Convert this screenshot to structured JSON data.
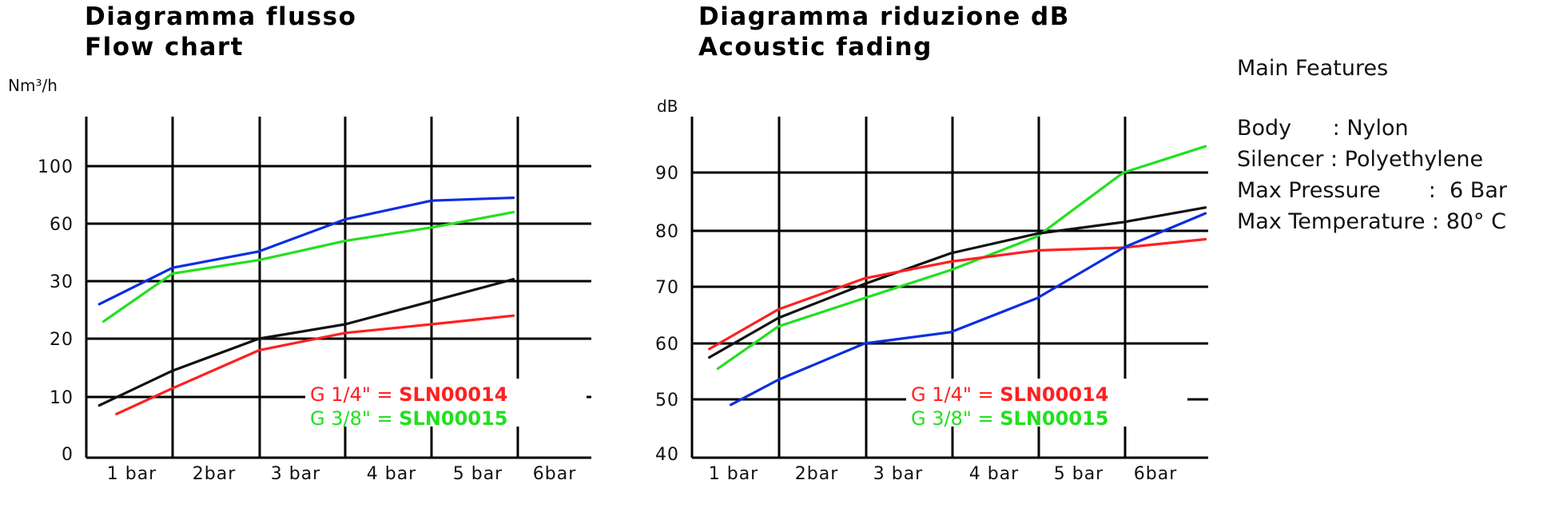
{
  "titles": {
    "flow": {
      "line1": "Diagramma flusso",
      "line2": "Flow chart"
    },
    "acoustic": {
      "line1": "Diagramma riduzione dB",
      "line2": "Acoustic fading"
    }
  },
  "features": {
    "heading": "Main Features",
    "body": "Body      : Nylon",
    "silencer": "Silencer : Polyethylene",
    "pressure": "Max Pressure       :  6 Bar",
    "temperature": "Max Temperature : 80° C"
  },
  "legend": [
    {
      "label": "G 1/4\" = ",
      "code": "SLN00014",
      "color": "#ff2020"
    },
    {
      "label": "G 3/8\" = ",
      "code": "SLN00015",
      "color": "#22e01e"
    }
  ],
  "chart_data": [
    {
      "type": "line",
      "title": "Diagramma flusso / Flow chart",
      "ylabel": "Nm³/h",
      "x_ticks": [
        "1 bar",
        "2bar",
        "3 bar",
        "4 bar",
        "5 bar",
        "6bar"
      ],
      "y_ticks": [
        "0",
        "10",
        "20",
        "30",
        "60",
        "100"
      ],
      "grid": true,
      "series": [
        {
          "color": "#0a2ee0",
          "points": [
            [
              0.15,
              26
            ],
            [
              1.0,
              37
            ],
            [
              2.0,
              45.5
            ],
            [
              3.0,
              63
            ],
            [
              4.0,
              76
            ],
            [
              4.95,
              78
            ]
          ]
        },
        {
          "color": "#22e01e",
          "points": [
            [
              0.2,
              23
            ],
            [
              1.0,
              34
            ],
            [
              2.0,
              41
            ],
            [
              3.0,
              51
            ],
            [
              4.0,
              58
            ],
            [
              4.95,
              68
            ]
          ]
        },
        {
          "color": "#111111",
          "points": [
            [
              0.15,
              8.5
            ],
            [
              1.0,
              14.5
            ],
            [
              2.0,
              20
            ],
            [
              3.0,
              22.5
            ],
            [
              4.0,
              26.5
            ],
            [
              4.95,
              31
            ]
          ]
        },
        {
          "color": "#ff2020",
          "points": [
            [
              0.35,
              7
            ],
            [
              1.0,
              11.5
            ],
            [
              2.0,
              18
            ],
            [
              3.0,
              21
            ],
            [
              4.0,
              22.5
            ],
            [
              4.95,
              24
            ]
          ]
        }
      ]
    },
    {
      "type": "line",
      "title": "Diagramma riduzione dB / Acoustic fading",
      "ylabel": "dB",
      "x_ticks": [
        "1 bar",
        "2bar",
        "3 bar",
        "4 bar",
        "5 bar",
        "6bar"
      ],
      "y_ticks": [
        "40",
        "50",
        "60",
        "70",
        "80",
        "90"
      ],
      "grid": true,
      "series": [
        {
          "color": "#22e01e",
          "points": [
            [
              0.3,
              55.5
            ],
            [
              1.0,
              63
            ],
            [
              2.0,
              68
            ],
            [
              3.0,
              73
            ],
            [
              4.0,
              79
            ],
            [
              5.0,
              90
            ],
            [
              5.95,
              94.5
            ]
          ]
        },
        {
          "color": "#111111",
          "points": [
            [
              0.2,
              57.5
            ],
            [
              1.0,
              64.5
            ],
            [
              2.0,
              70.5
            ],
            [
              3.0,
              76
            ],
            [
              4.0,
              79.5
            ],
            [
              5.0,
              81.5
            ],
            [
              5.95,
              84
            ]
          ]
        },
        {
          "color": "#ff2020",
          "points": [
            [
              0.2,
              59
            ],
            [
              1.0,
              66
            ],
            [
              2.0,
              71.5
            ],
            [
              3.0,
              74.5
            ],
            [
              4.0,
              76.5
            ],
            [
              5.0,
              77
            ],
            [
              5.95,
              78.5
            ]
          ]
        },
        {
          "color": "#0a2ee0",
          "points": [
            [
              0.45,
              49
            ],
            [
              1.0,
              53.5
            ],
            [
              2.0,
              60
            ],
            [
              3.0,
              62
            ],
            [
              4.0,
              68
            ],
            [
              5.0,
              77
            ],
            [
              5.95,
              83
            ]
          ]
        }
      ]
    }
  ]
}
